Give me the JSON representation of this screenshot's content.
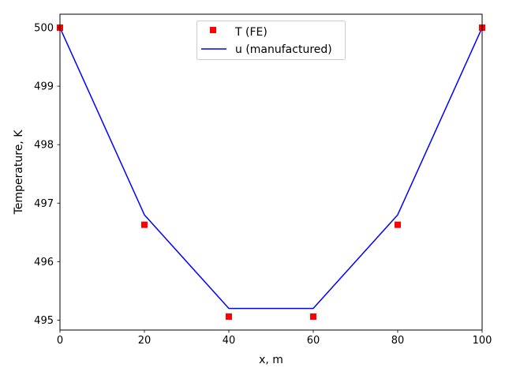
{
  "chart_data": {
    "type": "line",
    "xlabel": "x, m",
    "ylabel": "Temperature, K",
    "xlim": [
      0,
      100
    ],
    "ylim": [
      494.83,
      500.23
    ],
    "xticks": [
      "0",
      "20",
      "40",
      "60",
      "80",
      "100"
    ],
    "yticks": [
      "495",
      "496",
      "497",
      "498",
      "499",
      "500"
    ],
    "legend_position": "top-center",
    "grid": false,
    "series": [
      {
        "name": "T (FE)",
        "style": "square-markers",
        "color": "#ff0000",
        "x": [
          0,
          20,
          40,
          60,
          80,
          100
        ],
        "y": [
          500.0,
          496.63,
          495.06,
          495.06,
          496.63,
          500.0
        ]
      },
      {
        "name": "u (manufactured)",
        "style": "line",
        "color": "#0000ff",
        "x": [
          0,
          20,
          40,
          60,
          80,
          100
        ],
        "y": [
          500.0,
          496.8,
          495.2,
          495.2,
          496.8,
          500.0
        ]
      }
    ]
  }
}
